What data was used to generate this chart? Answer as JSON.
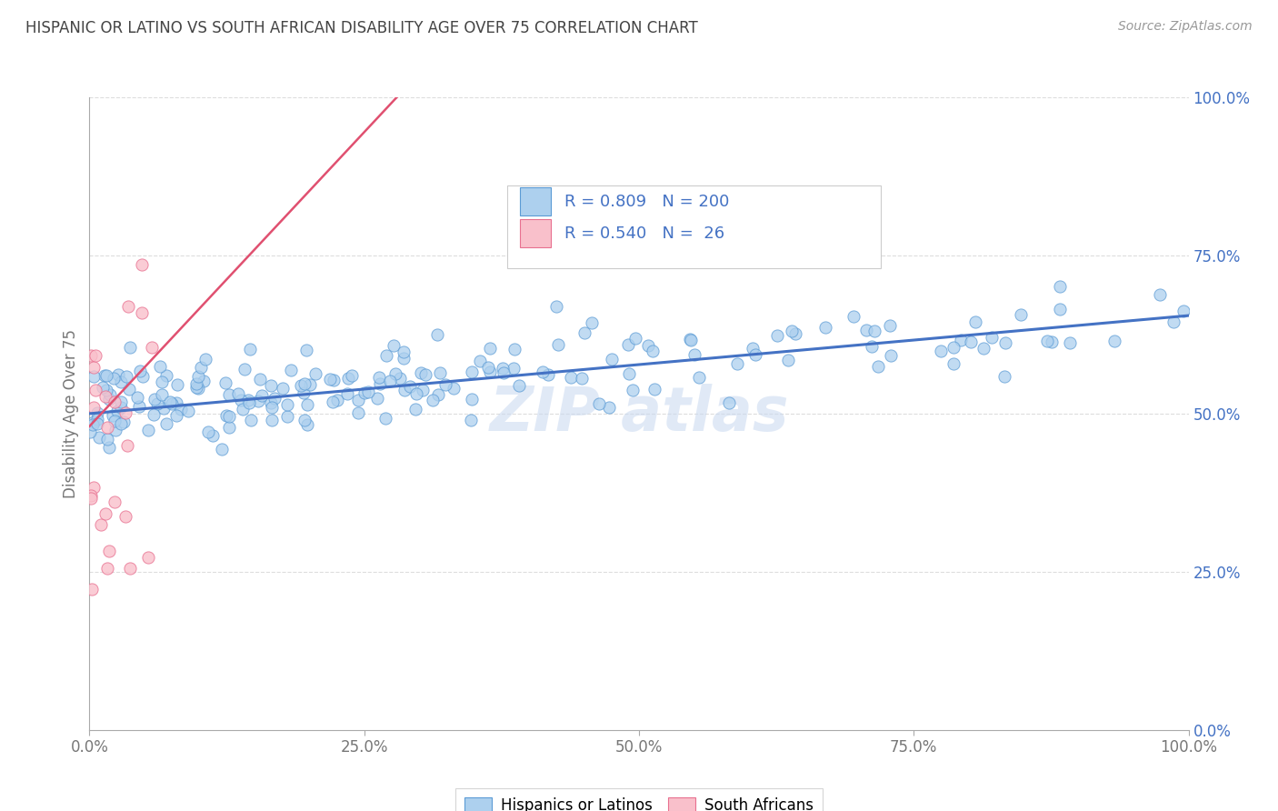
{
  "title": "HISPANIC OR LATINO VS SOUTH AFRICAN DISABILITY AGE OVER 75 CORRELATION CHART",
  "source": "Source: ZipAtlas.com",
  "ylabel": "Disability Age Over 75",
  "watermark": "ZIP atlas",
  "blue_R": 0.809,
  "blue_N": 200,
  "pink_R": 0.54,
  "pink_N": 26,
  "blue_color": "#ADD0EE",
  "pink_color": "#F9C0CB",
  "blue_edge_color": "#5B9BD5",
  "pink_edge_color": "#E87090",
  "blue_line_color": "#4472C4",
  "pink_line_color": "#E05070",
  "legend_label_blue": "Hispanics or Latinos",
  "legend_label_pink": "South Africans",
  "xlim": [
    0,
    1
  ],
  "ylim": [
    0,
    1
  ],
  "right_yticks": [
    0.0,
    0.25,
    0.5,
    0.75,
    1.0
  ],
  "right_yticklabels": [
    "0.0%",
    "25.0%",
    "50.0%",
    "75.0%",
    "100.0%"
  ],
  "xtick_positions": [
    0.0,
    0.25,
    0.5,
    0.75,
    1.0
  ],
  "xtick_labels": [
    "0.0%",
    "25.0%",
    "50.0%",
    "75.0%",
    "100.0%"
  ],
  "background_color": "#FFFFFF",
  "grid_color": "#DDDDDD",
  "title_color": "#444444",
  "axis_color": "#AAAAAA",
  "tick_color": "#777777",
  "watermark_color": "#C8D8F0",
  "info_text_color": "#333333",
  "info_value_color": "#4472C4",
  "seed": 99,
  "blue_intercept": 0.505,
  "blue_slope": 0.15,
  "blue_noise": 0.032,
  "pink_intercept": 0.48,
  "pink_slope": 1.8,
  "pink_noise": 0.12
}
